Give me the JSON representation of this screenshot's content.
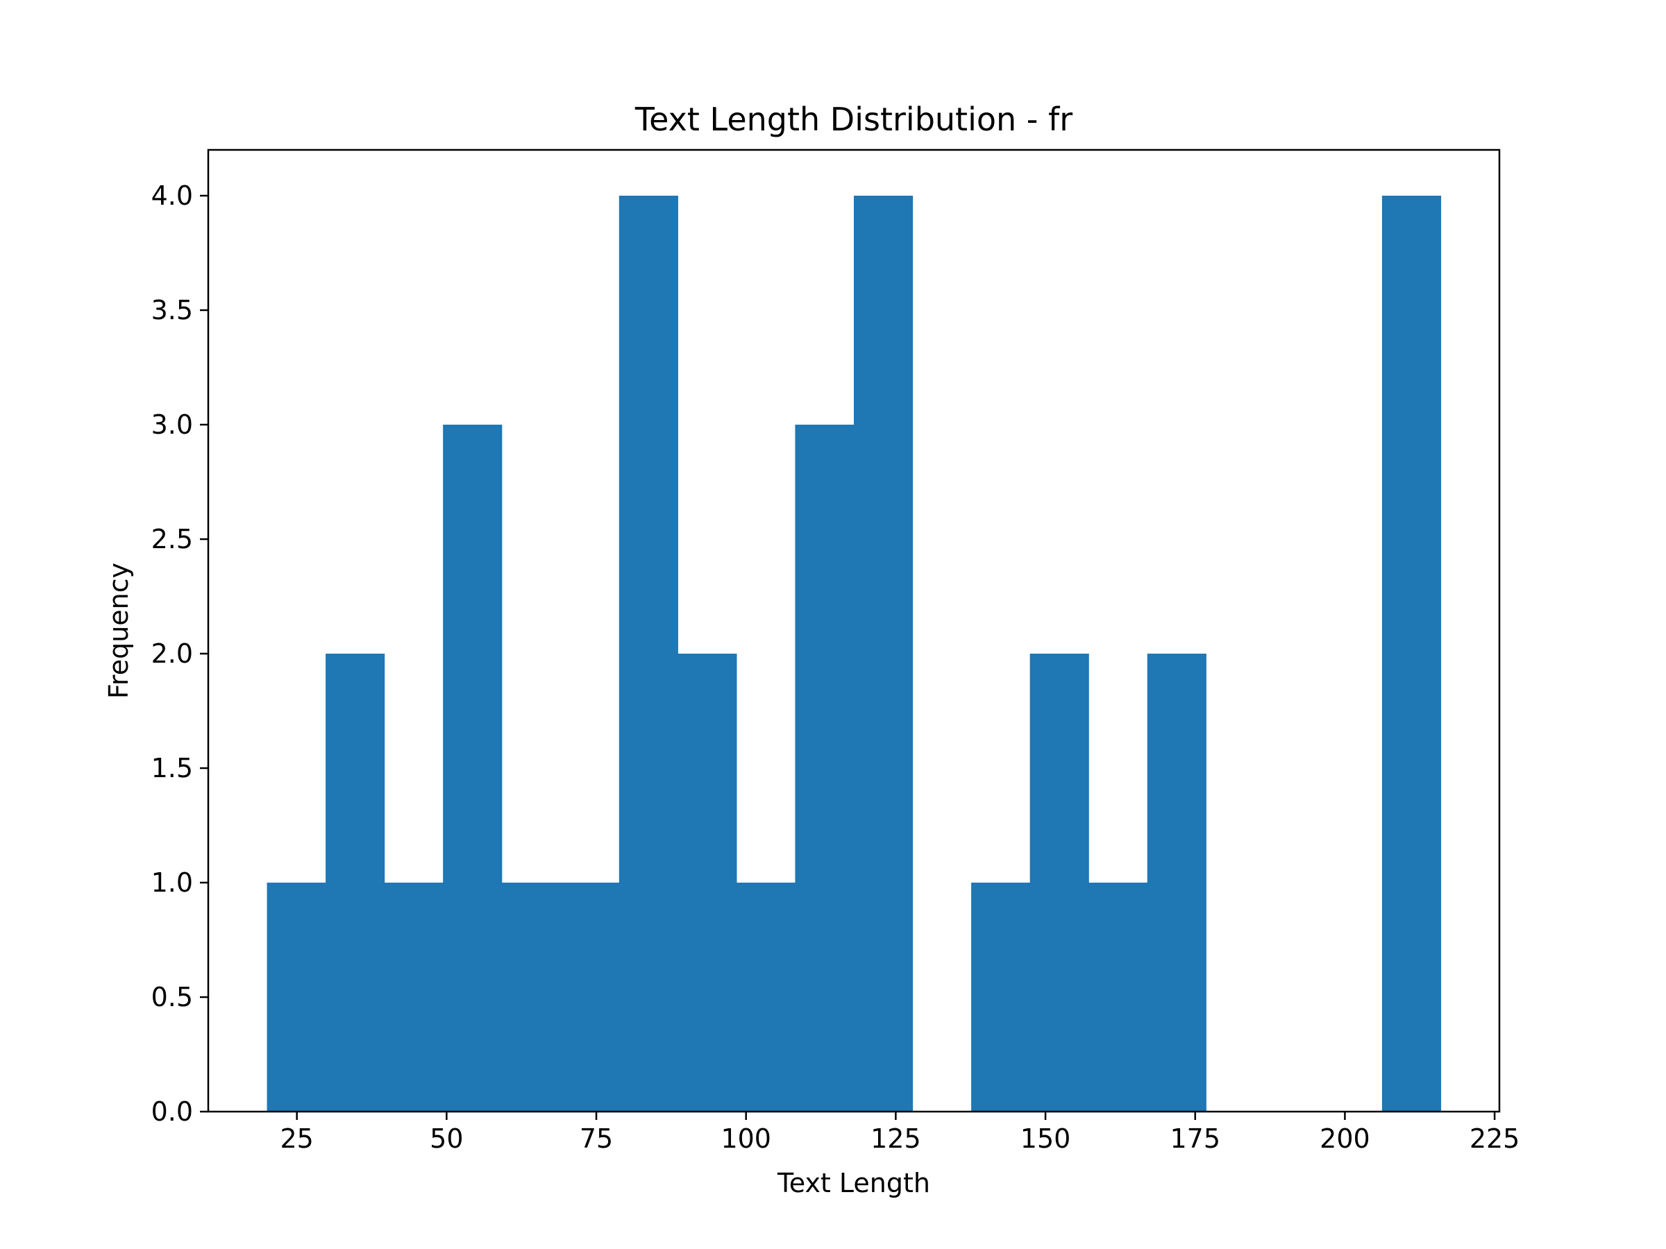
{
  "chart_data": {
    "type": "bar",
    "title": "Text Length Distribution - fr",
    "xlabel": "Text Length",
    "ylabel": "Frequency",
    "xlim": [
      10.2,
      225.8
    ],
    "ylim": [
      0,
      4.2
    ],
    "x_ticks": [
      {
        "value": 25,
        "label": "25"
      },
      {
        "value": 50,
        "label": "50"
      },
      {
        "value": 75,
        "label": "75"
      },
      {
        "value": 100,
        "label": "100"
      },
      {
        "value": 125,
        "label": "125"
      },
      {
        "value": 150,
        "label": "150"
      },
      {
        "value": 175,
        "label": "175"
      },
      {
        "value": 200,
        "label": "200"
      },
      {
        "value": 225,
        "label": "225"
      }
    ],
    "y_ticks": [
      {
        "value": 0.0,
        "label": "0.0"
      },
      {
        "value": 0.5,
        "label": "0.5"
      },
      {
        "value": 1.0,
        "label": "1.0"
      },
      {
        "value": 1.5,
        "label": "1.5"
      },
      {
        "value": 2.0,
        "label": "2.0"
      },
      {
        "value": 2.5,
        "label": "2.5"
      },
      {
        "value": 3.0,
        "label": "3.0"
      },
      {
        "value": 3.5,
        "label": "3.5"
      },
      {
        "value": 4.0,
        "label": "4.0"
      }
    ],
    "bins": [
      {
        "start": 20.0,
        "end": 29.8,
        "count": 1
      },
      {
        "start": 29.8,
        "end": 39.6,
        "count": 2
      },
      {
        "start": 39.6,
        "end": 49.4,
        "count": 1
      },
      {
        "start": 49.4,
        "end": 59.2,
        "count": 3
      },
      {
        "start": 59.2,
        "end": 69.0,
        "count": 1
      },
      {
        "start": 69.0,
        "end": 78.8,
        "count": 1
      },
      {
        "start": 78.8,
        "end": 88.6,
        "count": 4
      },
      {
        "start": 88.6,
        "end": 98.4,
        "count": 2
      },
      {
        "start": 98.4,
        "end": 108.2,
        "count": 1
      },
      {
        "start": 108.2,
        "end": 118.0,
        "count": 3
      },
      {
        "start": 118.0,
        "end": 127.8,
        "count": 4
      },
      {
        "start": 127.8,
        "end": 137.6,
        "count": 0
      },
      {
        "start": 137.6,
        "end": 147.4,
        "count": 1
      },
      {
        "start": 147.4,
        "end": 157.2,
        "count": 2
      },
      {
        "start": 157.2,
        "end": 167.0,
        "count": 1
      },
      {
        "start": 167.0,
        "end": 176.8,
        "count": 2
      },
      {
        "start": 176.8,
        "end": 186.6,
        "count": 0
      },
      {
        "start": 186.6,
        "end": 196.4,
        "count": 0
      },
      {
        "start": 196.4,
        "end": 206.2,
        "count": 0
      },
      {
        "start": 206.2,
        "end": 216.0,
        "count": 4
      }
    ],
    "bar_color": "#1f77b4",
    "grid": false,
    "legend": "none"
  }
}
